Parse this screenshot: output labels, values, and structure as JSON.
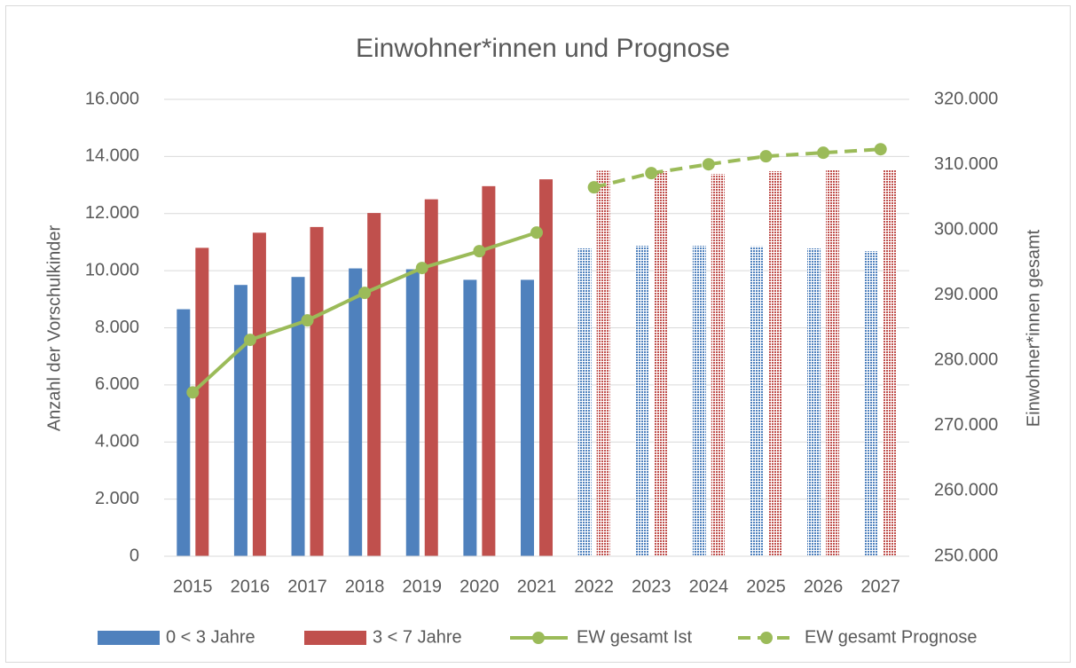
{
  "chart_data": {
    "type": "bar_line",
    "title": "Einwohner*innen und Prognose",
    "y_label": "Anzahl der Vorschulkinder",
    "y2_label": "Einwohner*innen gesamt",
    "categories": [
      "2015",
      "2016",
      "2017",
      "2018",
      "2019",
      "2020",
      "2021",
      "2022",
      "2023",
      "2024",
      "2025",
      "2026",
      "2027"
    ],
    "projected": [
      false,
      false,
      false,
      false,
      false,
      false,
      false,
      true,
      true,
      true,
      true,
      true,
      true
    ],
    "series": [
      {
        "name": "0 < 3 Jahre",
        "kind": "bar",
        "color": "#4f81bd",
        "values": [
          8650,
          9500,
          9780,
          10080,
          10050,
          9680,
          9680,
          10780,
          10870,
          10870,
          10850,
          10780,
          10680
        ]
      },
      {
        "name": "3 < 7 Jahre",
        "kind": "bar",
        "color": "#c0504d",
        "values": [
          10800,
          11330,
          11530,
          12020,
          12500,
          12960,
          13200,
          13500,
          13480,
          13380,
          13480,
          13530,
          13530
        ]
      },
      {
        "name": "EW gesamt Ist",
        "kind": "line",
        "axis": "y2",
        "color": "#9bbb59",
        "dashed": false,
        "values": [
          275100,
          283150,
          286140,
          290350,
          294160,
          296740,
          299590,
          null,
          null,
          null,
          null,
          null,
          null
        ]
      },
      {
        "name": "EW gesamt Prognose",
        "kind": "line",
        "axis": "y2",
        "color": "#9bbb59",
        "dashed": true,
        "values": [
          null,
          null,
          null,
          null,
          null,
          null,
          null,
          306520,
          308700,
          310050,
          311280,
          311820,
          312360
        ]
      }
    ],
    "ylim": [
      0,
      16000
    ],
    "yticks": [
      0,
      {
        "value": 2000,
        "label": "2.000"
      },
      {
        "value": 4000,
        "label": "4.000"
      },
      {
        "value": 6000,
        "label": "6.000"
      },
      {
        "value": 8000,
        "label": "8.000"
      },
      {
        "value": 10000,
        "label": "10.000"
      },
      {
        "value": 12000,
        "label": "12.000"
      },
      {
        "value": 14000,
        "label": "14.000"
      },
      {
        "value": 16000,
        "label": "16.000"
      }
    ],
    "y2lim": [
      250000,
      320000
    ],
    "y2ticks": [
      {
        "value": 250000,
        "label": "250.000"
      },
      {
        "value": 260000,
        "label": "260.000"
      },
      {
        "value": 270000,
        "label": "270.000"
      },
      {
        "value": 280000,
        "label": "280.000"
      },
      {
        "value": 290000,
        "label": "290.000"
      },
      {
        "value": 300000,
        "label": "300.000"
      },
      {
        "value": 310000,
        "label": "310.000"
      },
      {
        "value": 320000,
        "label": "320.000"
      }
    ],
    "grid": true,
    "legend": "bottom"
  }
}
